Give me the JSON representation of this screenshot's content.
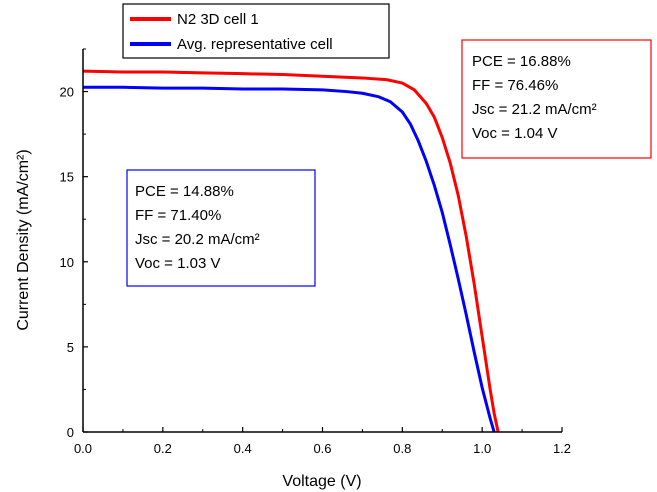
{
  "chart_data": {
    "type": "line",
    "title": "",
    "xlabel": "Voltage (V)",
    "ylabel": "Current Density (mA/cm²)",
    "xlim": [
      0.0,
      1.2
    ],
    "ylim": [
      0,
      22.5
    ],
    "x_ticks": [
      0.0,
      0.2,
      0.4,
      0.6,
      0.8,
      1.0,
      1.2
    ],
    "x_tick_labels": [
      "0.0",
      "0.2",
      "0.4",
      "0.6",
      "0.8",
      "1.0",
      "1.2"
    ],
    "y_ticks": [
      0,
      5,
      10,
      15,
      20
    ],
    "y_tick_labels": [
      "0",
      "5",
      "10",
      "15",
      "20"
    ],
    "grid": false,
    "legend_position": "top-left",
    "series": [
      {
        "name": "N2 3D cell 1",
        "color": "#ff0000",
        "x": [
          0.0,
          0.1,
          0.2,
          0.3,
          0.4,
          0.5,
          0.6,
          0.7,
          0.76,
          0.8,
          0.83,
          0.86,
          0.88,
          0.9,
          0.92,
          0.94,
          0.96,
          0.98,
          1.0,
          1.02,
          1.03,
          1.04
        ],
        "y": [
          21.2,
          21.15,
          21.15,
          21.1,
          21.05,
          21.0,
          20.9,
          20.8,
          20.7,
          20.5,
          20.1,
          19.3,
          18.5,
          17.3,
          15.8,
          13.9,
          11.5,
          8.7,
          5.6,
          2.5,
          1.1,
          0.0
        ]
      },
      {
        "name": "Avg. representative cell",
        "color": "#0000ff",
        "x": [
          0.0,
          0.1,
          0.2,
          0.3,
          0.4,
          0.5,
          0.6,
          0.66,
          0.7,
          0.74,
          0.77,
          0.8,
          0.82,
          0.84,
          0.86,
          0.88,
          0.9,
          0.92,
          0.94,
          0.96,
          0.98,
          1.0,
          1.02,
          1.03
        ],
        "y": [
          20.25,
          20.25,
          20.2,
          20.2,
          20.15,
          20.15,
          20.1,
          20.0,
          19.9,
          19.7,
          19.4,
          18.8,
          18.1,
          17.1,
          15.9,
          14.5,
          12.9,
          11.0,
          9.0,
          6.9,
          4.7,
          2.6,
          0.8,
          0.0
        ]
      }
    ],
    "annotations": [
      {
        "id": "red-box",
        "border_color": "#ff0000",
        "lines": [
          "PCE = 16.88%",
          "FF = 76.46%",
          "Jsc = 21.2 mA/cm²",
          "Voc = 1.04 V"
        ]
      },
      {
        "id": "blue-box",
        "border_color": "#0000ff",
        "lines": [
          "PCE = 14.88%",
          "FF = 71.40%",
          "Jsc = 20.2 mA/cm²",
          "Voc = 1.03 V"
        ]
      }
    ]
  }
}
